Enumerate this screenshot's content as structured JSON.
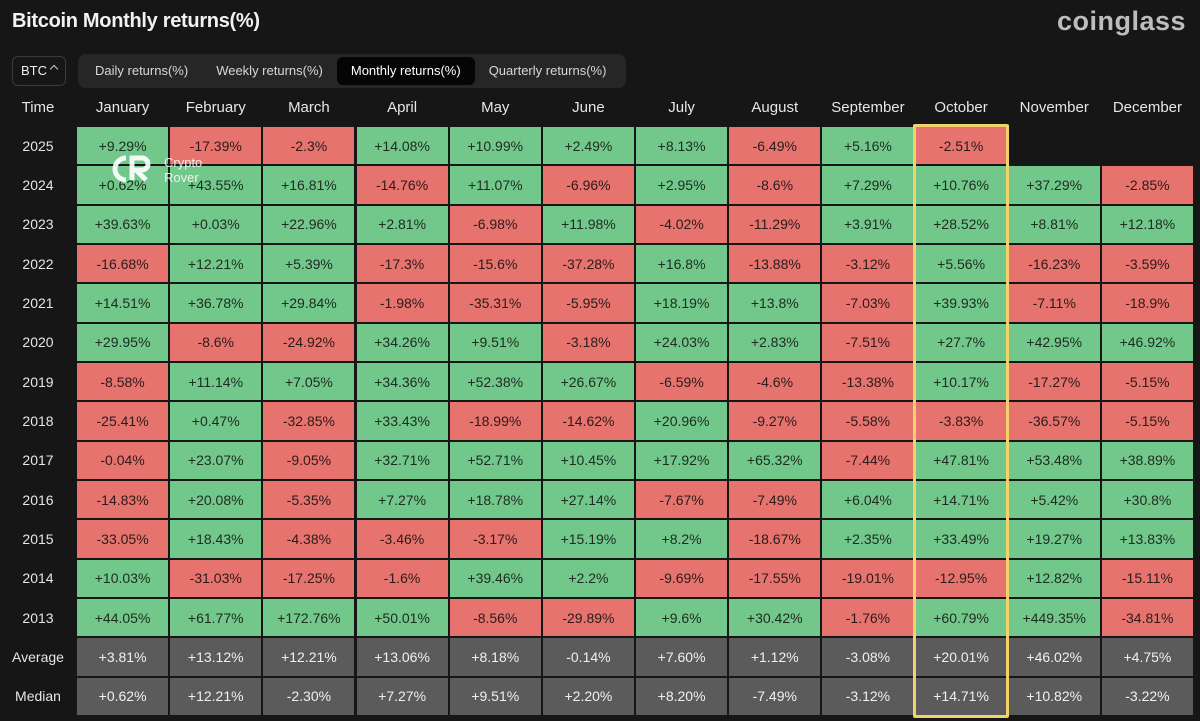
{
  "header": {
    "title": "Bitcoin Monthly returns(%)",
    "logo": "coinglass"
  },
  "controls": {
    "asset": "BTC",
    "tabs": [
      "Daily returns(%)",
      "Weekly returns(%)",
      "Monthly returns(%)",
      "Quarterly returns(%)"
    ],
    "active_tab": 2
  },
  "watermark": [
    "Crypto",
    "Rover"
  ],
  "table": {
    "columns": [
      "Time",
      "January",
      "February",
      "March",
      "April",
      "May",
      "June",
      "July",
      "August",
      "September",
      "October",
      "November",
      "December"
    ],
    "rows": [
      [
        "2025",
        "+9.29%",
        "-17.39%",
        "-2.3%",
        "+14.08%",
        "+10.99%",
        "+2.49%",
        "+8.13%",
        "-6.49%",
        "+5.16%",
        "-2.51%",
        null,
        null
      ],
      [
        "2024",
        "+0.62%",
        "+43.55%",
        "+16.81%",
        "-14.76%",
        "+11.07%",
        "-6.96%",
        "+2.95%",
        "-8.6%",
        "+7.29%",
        "+10.76%",
        "+37.29%",
        "-2.85%"
      ],
      [
        "2023",
        "+39.63%",
        "+0.03%",
        "+22.96%",
        "+2.81%",
        "-6.98%",
        "+11.98%",
        "-4.02%",
        "-11.29%",
        "+3.91%",
        "+28.52%",
        "+8.81%",
        "+12.18%"
      ],
      [
        "2022",
        "-16.68%",
        "+12.21%",
        "+5.39%",
        "-17.3%",
        "-15.6%",
        "-37.28%",
        "+16.8%",
        "-13.88%",
        "-3.12%",
        "+5.56%",
        "-16.23%",
        "-3.59%"
      ],
      [
        "2021",
        "+14.51%",
        "+36.78%",
        "+29.84%",
        "-1.98%",
        "-35.31%",
        "-5.95%",
        "+18.19%",
        "+13.8%",
        "-7.03%",
        "+39.93%",
        "-7.11%",
        "-18.9%"
      ],
      [
        "2020",
        "+29.95%",
        "-8.6%",
        "-24.92%",
        "+34.26%",
        "+9.51%",
        "-3.18%",
        "+24.03%",
        "+2.83%",
        "-7.51%",
        "+27.7%",
        "+42.95%",
        "+46.92%"
      ],
      [
        "2019",
        "-8.58%",
        "+11.14%",
        "+7.05%",
        "+34.36%",
        "+52.38%",
        "+26.67%",
        "-6.59%",
        "-4.6%",
        "-13.38%",
        "+10.17%",
        "-17.27%",
        "-5.15%"
      ],
      [
        "2018",
        "-25.41%",
        "+0.47%",
        "-32.85%",
        "+33.43%",
        "-18.99%",
        "-14.62%",
        "+20.96%",
        "-9.27%",
        "-5.58%",
        "-3.83%",
        "-36.57%",
        "-5.15%"
      ],
      [
        "2017",
        "-0.04%",
        "+23.07%",
        "-9.05%",
        "+32.71%",
        "+52.71%",
        "+10.45%",
        "+17.92%",
        "+65.32%",
        "-7.44%",
        "+47.81%",
        "+53.48%",
        "+38.89%"
      ],
      [
        "2016",
        "-14.83%",
        "+20.08%",
        "-5.35%",
        "+7.27%",
        "+18.78%",
        "+27.14%",
        "-7.67%",
        "-7.49%",
        "+6.04%",
        "+14.71%",
        "+5.42%",
        "+30.8%"
      ],
      [
        "2015",
        "-33.05%",
        "+18.43%",
        "-4.38%",
        "-3.46%",
        "-3.17%",
        "+15.19%",
        "+8.2%",
        "-18.67%",
        "+2.35%",
        "+33.49%",
        "+19.27%",
        "+13.83%"
      ],
      [
        "2014",
        "+10.03%",
        "-31.03%",
        "-17.25%",
        "-1.6%",
        "+39.46%",
        "+2.2%",
        "-9.69%",
        "-17.55%",
        "-19.01%",
        "-12.95%",
        "+12.82%",
        "-15.11%"
      ],
      [
        "2013",
        "+44.05%",
        "+61.77%",
        "+172.76%",
        "+50.01%",
        "-8.56%",
        "-29.89%",
        "+9.6%",
        "+30.42%",
        "-1.76%",
        "+60.79%",
        "+449.35%",
        "-34.81%"
      ],
      [
        "Average",
        "+3.81%",
        "+13.12%",
        "+12.21%",
        "+13.06%",
        "+8.18%",
        "-0.14%",
        "+7.60%",
        "+1.12%",
        "-3.08%",
        "+20.01%",
        "+46.02%",
        "+4.75%"
      ],
      [
        "Median",
        "+0.62%",
        "+12.21%",
        "-2.30%",
        "+7.27%",
        "+9.51%",
        "+2.20%",
        "+8.20%",
        "-7.49%",
        "-3.12%",
        "+14.71%",
        "+10.82%",
        "-3.22%"
      ]
    ]
  }
}
